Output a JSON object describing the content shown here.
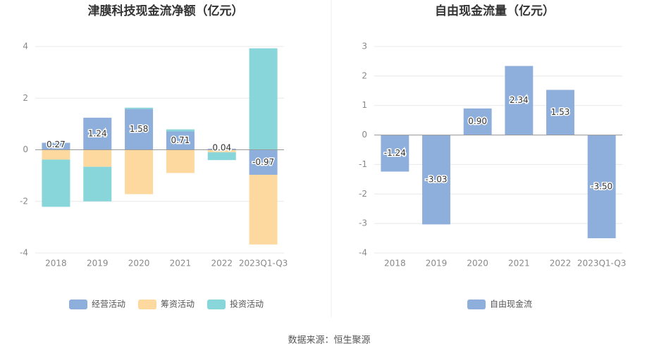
{
  "chart_data": [
    {
      "type": "bar",
      "stacked": true,
      "title": "津膜科技现金流净额（亿元）",
      "categories": [
        "2018",
        "2019",
        "2020",
        "2021",
        "2022",
        "2023Q1-Q3"
      ],
      "series": [
        {
          "name": "经营活动",
          "color": "#8eaedb",
          "values": [
            0.27,
            1.24,
            1.58,
            0.71,
            0.04,
            -0.97
          ],
          "labels": true
        },
        {
          "name": "筹资活动",
          "color": "#fdd9a0",
          "values": [
            -0.38,
            -0.66,
            -1.72,
            -0.9,
            -0.1,
            -2.7
          ]
        },
        {
          "name": "投资活动",
          "color": "#88d6d9",
          "values": [
            -1.83,
            -1.34,
            0.05,
            0.08,
            -0.3,
            3.93
          ]
        }
      ],
      "ylim": [
        -4,
        4
      ],
      "yticks": [
        -4,
        -2,
        0,
        2,
        4
      ],
      "grid": true
    },
    {
      "type": "bar",
      "title": "自由现金流量（亿元）",
      "categories": [
        "2018",
        "2019",
        "2020",
        "2021",
        "2022",
        "2023Q1-Q3"
      ],
      "series": [
        {
          "name": "自由现金流",
          "color": "#8eaedb",
          "values": [
            -1.24,
            -3.03,
            0.9,
            2.34,
            1.53,
            -3.5
          ],
          "value_labels": [
            "-1.24",
            "-3.03",
            "0.90",
            "2.34",
            "1.53",
            "-3.50"
          ],
          "labels": true
        }
      ],
      "ylim": [
        -4,
        3
      ],
      "yticks": [
        -4,
        -3,
        -2,
        -1,
        0,
        1,
        2,
        3
      ],
      "grid": true
    }
  ],
  "source": "数据来源：恒生聚源"
}
